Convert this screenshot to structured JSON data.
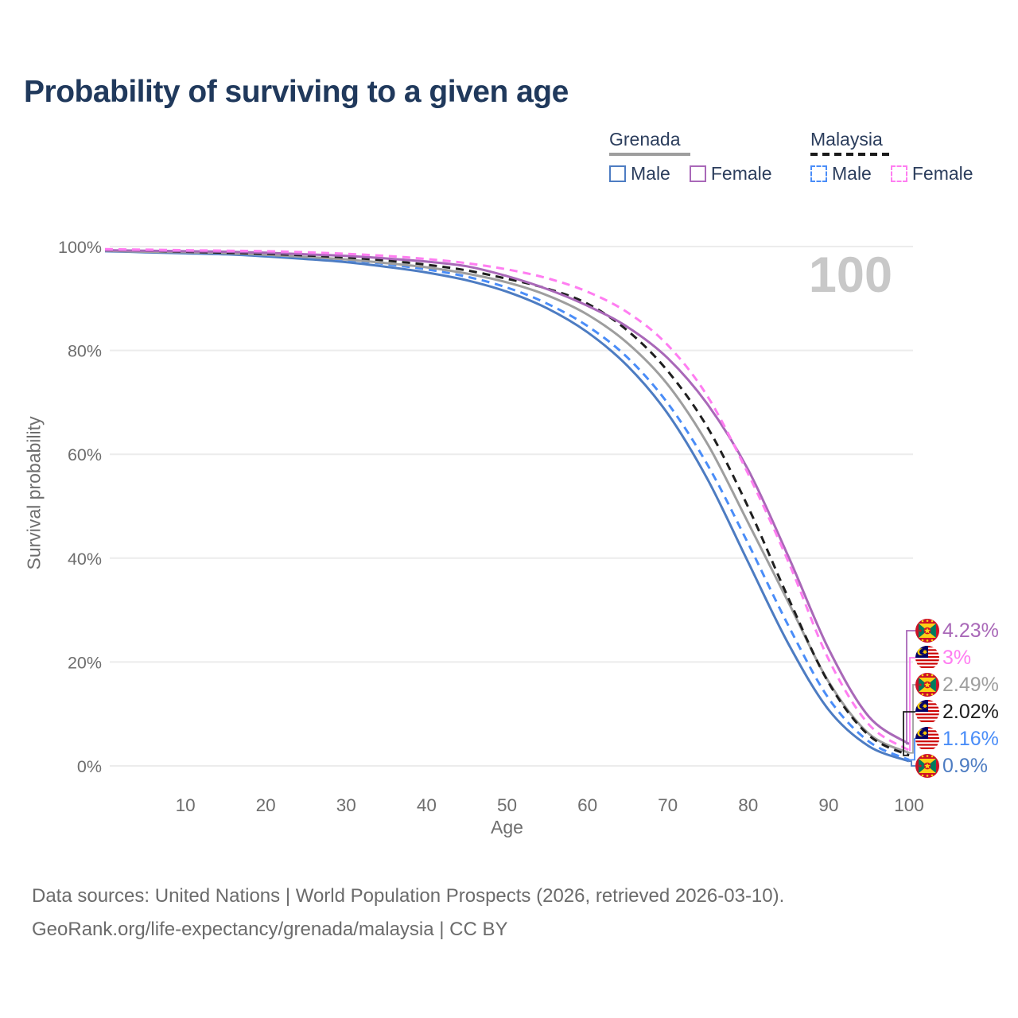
{
  "title": "Probability of surviving to a given age",
  "watermark_age": "100",
  "legend": {
    "groups": [
      {
        "country": "Grenada",
        "line_style": "solid",
        "underline_color": "#9e9e9e",
        "items": [
          {
            "label": "Male",
            "color": "#4d7cc2",
            "dash": "solid"
          },
          {
            "label": "Female",
            "color": "#a968b8",
            "dash": "solid"
          }
        ]
      },
      {
        "country": "Malaysia",
        "line_style": "dashed",
        "underline_color": "#1a1a1a",
        "items": [
          {
            "label": "Male",
            "color": "#4a8df8",
            "dash": "dashed"
          },
          {
            "label": "Female",
            "color": "#ff7df1",
            "dash": "dashed"
          }
        ]
      }
    ]
  },
  "chart_data": {
    "type": "line",
    "title": "Probability of surviving to a given age",
    "xlabel": "Age",
    "ylabel": "Survival probability",
    "xlim": [
      0,
      100
    ],
    "ylim": [
      0,
      100
    ],
    "grid": "horizontal",
    "legend_position": "top-right",
    "x_ticks": [
      10,
      20,
      30,
      40,
      50,
      60,
      70,
      80,
      90,
      100
    ],
    "y_ticks": [
      {
        "value": 100,
        "label": "100%"
      },
      {
        "value": 80,
        "label": "80%"
      },
      {
        "value": 60,
        "label": "60%"
      },
      {
        "value": 40,
        "label": "40%"
      },
      {
        "value": 20,
        "label": "20%"
      },
      {
        "value": 0,
        "label": "0%"
      }
    ],
    "ages": [
      0,
      5,
      10,
      15,
      20,
      25,
      30,
      35,
      40,
      45,
      50,
      55,
      60,
      65,
      70,
      75,
      80,
      85,
      90,
      95,
      100
    ],
    "series": [
      {
        "name": "Grenada Female",
        "country": "grenada",
        "sex": "female",
        "color": "#a968b8",
        "dash": "solid",
        "end_label": "4.23%",
        "values": [
          99.3,
          99.2,
          99.1,
          99.0,
          98.8,
          98.5,
          98.2,
          97.7,
          97.1,
          96.2,
          94.3,
          91.8,
          88.6,
          84.5,
          78.5,
          69.5,
          57.0,
          40.3,
          22.5,
          9.5,
          4.23
        ]
      },
      {
        "name": "Malaysia Female",
        "country": "malaysia",
        "sex": "female",
        "color": "#ff7df1",
        "dash": "dashed",
        "end_label": "3%",
        "values": [
          99.5,
          99.4,
          99.3,
          99.2,
          99.1,
          98.9,
          98.6,
          98.2,
          97.6,
          96.8,
          95.6,
          93.9,
          91.3,
          87.3,
          81.0,
          71.0,
          56.2,
          39.3,
          20.5,
          8.0,
          3.0
        ]
      },
      {
        "name": "Grenada",
        "country": "grenada",
        "sex": "both",
        "color": "#9e9e9e",
        "dash": "solid",
        "end_label": "2.49%",
        "values": [
          99.2,
          99.0,
          98.9,
          98.7,
          98.4,
          98.0,
          97.5,
          96.8,
          96.0,
          94.8,
          93.1,
          90.6,
          86.9,
          81.4,
          73.4,
          61.8,
          46.8,
          31.5,
          16.2,
          6.2,
          2.49
        ]
      },
      {
        "name": "Malaysia",
        "country": "malaysia",
        "sex": "both",
        "color": "#1f1f1f",
        "dash": "dashed",
        "end_label": "2.02%",
        "values": [
          99.3,
          99.2,
          99.0,
          98.8,
          98.6,
          98.3,
          97.9,
          97.3,
          96.5,
          95.4,
          93.8,
          91.9,
          89.0,
          83.8,
          76.0,
          65.0,
          49.8,
          32.3,
          16.0,
          5.9,
          2.02
        ]
      },
      {
        "name": "Malaysia Male",
        "country": "malaysia",
        "sex": "male",
        "color": "#4a8df8",
        "dash": "dashed",
        "end_label": "1.16%",
        "values": [
          99.2,
          99.0,
          98.9,
          98.6,
          98.3,
          97.9,
          97.4,
          96.6,
          95.6,
          94.2,
          92.1,
          89.0,
          84.7,
          78.6,
          69.8,
          57.8,
          42.8,
          27.0,
          13.0,
          4.7,
          1.16
        ]
      },
      {
        "name": "Grenada Male",
        "country": "grenada",
        "sex": "male",
        "color": "#4d7cc2",
        "dash": "solid",
        "end_label": "0.9%",
        "values": [
          99.1,
          98.9,
          98.7,
          98.5,
          98.1,
          97.6,
          97.0,
          96.1,
          95.0,
          93.5,
          91.3,
          88.1,
          83.5,
          77.0,
          67.8,
          55.0,
          39.2,
          23.5,
          10.8,
          3.8,
          0.9
        ]
      }
    ],
    "draw_order": [
      5,
      4,
      2,
      3,
      0,
      1
    ]
  },
  "footer": {
    "line1": "Data sources: United Nations | World Population Prospects (2026, retrieved 2026-03-10).",
    "line2": "GeoRank.org/life-expectancy/grenada/malaysia | CC BY"
  }
}
